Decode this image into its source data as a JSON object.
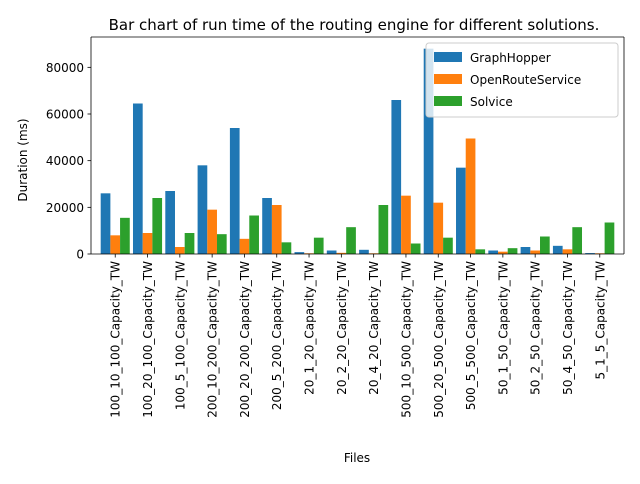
{
  "chart_data": {
    "type": "bar",
    "title": "Bar chart of run time of the routing engine for different solutions.",
    "xlabel": "Files",
    "ylabel": "Duration (ms)",
    "ylim": [
      0,
      93000
    ],
    "yticks": [
      0,
      20000,
      40000,
      60000,
      80000
    ],
    "ytick_labels": [
      "0",
      "20000",
      "40000",
      "60000",
      "80000"
    ],
    "grid": false,
    "legend_position": "top-right",
    "categories": [
      "100_10_100_Capacity_TW",
      "100_20_100_Capacity_TW",
      "100_5_100_Capacity_TW",
      "200_10_200_Capacity_TW",
      "200_20_200_Capacity_TW",
      "200_5_200_Capacity_TW",
      "20_1_20_Capacity_TW",
      "20_2_20_Capacity_TW",
      "20_4_20_Capacity_TW",
      "500_10_500_Capacity_TW",
      "500_20_500_Capacity_TW",
      "500_5_500_Capacity_TW",
      "50_1_50_Capacity_TW",
      "50_2_50_Capacity_TW",
      "50_4_50_Capacity_TW",
      "5_1_5_Capacity_TW"
    ],
    "series": [
      {
        "name": "GraphHopper",
        "color": "#1f77b4",
        "values": [
          26000,
          64500,
          27000,
          38000,
          54000,
          24000,
          800,
          1500,
          1800,
          66000,
          88000,
          37000,
          1500,
          3000,
          3500,
          400
        ]
      },
      {
        "name": "OpenRouteService",
        "color": "#ff7f0e",
        "values": [
          8000,
          9000,
          3000,
          19000,
          6500,
          21000,
          300,
          500,
          300,
          25000,
          22000,
          49500,
          1000,
          1500,
          2000,
          300
        ]
      },
      {
        "name": "Solvice",
        "color": "#2ca02c",
        "values": [
          15500,
          24000,
          9000,
          8500,
          16500,
          5000,
          7000,
          11500,
          21000,
          4500,
          7000,
          2000,
          2500,
          7500,
          11500,
          13500
        ]
      }
    ]
  }
}
